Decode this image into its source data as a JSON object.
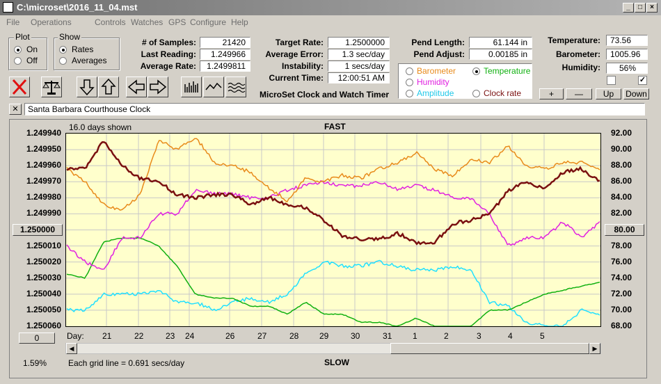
{
  "window": {
    "title": "C:\\microset\\2016_11_04.mst"
  },
  "menu": [
    "File",
    "Operations",
    "Controls",
    "Watches",
    "GPS",
    "Configure",
    "Help"
  ],
  "plot_group": {
    "title": "Plot",
    "on": "On",
    "off": "Off",
    "selected": "On"
  },
  "show_group": {
    "title": "Show",
    "rates": "Rates",
    "averages": "Averages",
    "selected": "Rates"
  },
  "stats": {
    "samples_label": "# of Samples:",
    "samples": "21420",
    "last_label": "Last Reading:",
    "last": "1.249966",
    "avg_label": "Average Rate:",
    "avg": "1.2499811",
    "target_label": "Target Rate:",
    "target": "1.2500000",
    "err_label": "Average Error:",
    "err": "1.3 sec/day",
    "instab_label": "Instability:",
    "instab": "1 secs/day",
    "time_label": "Current Time:",
    "time": "12:00:51 AM",
    "pendlen_label": "Pend Length:",
    "pendlen": "61.144 in",
    "pendadj_label": "Pend Adjust:",
    "pendadj": "0.00185 in",
    "temp_label": "Temperature:",
    "temp": "73.56",
    "baro_label": "Barometer:",
    "baro": "1005.96",
    "hum_label": "Humidity:",
    "hum": "56%"
  },
  "app_name": "MicroSet Clock and Watch Timer",
  "series_select": {
    "barometer": "Barometer",
    "humidity": "Humidity",
    "amplitude": "Amplitude",
    "temperature": "Temperature",
    "clockrate": "Clock rate",
    "selected": "Temperature"
  },
  "adjust_buttons": {
    "plus": "+",
    "minus": "—",
    "up": "Up",
    "down": "Down"
  },
  "clock_name": "Santa Barbara Courthouse Clock",
  "close_x": "✕",
  "chart_header": {
    "days_shown": "16.0 days shown",
    "fast": "FAST",
    "slow": "SLOW"
  },
  "left_center_button": "1.250000",
  "right_center_button": "80.00",
  "zero_button": "0",
  "percent": "1.59%",
  "grid_note": "Each grid line = 0.691 secs/day",
  "day_label": "Day:",
  "colors": {
    "barometer": "#e88a1a",
    "humidity": "#e020e0",
    "amplitude": "#20e0ff",
    "temperature": "#10b010",
    "clockrate": "#7a1010"
  },
  "chart_data": {
    "type": "line",
    "x_ticks": [
      "21",
      "22",
      "23",
      "24",
      "26",
      "27",
      "28",
      "29",
      "30",
      "31",
      "1",
      "2",
      "3",
      "4",
      "5"
    ],
    "y_left_ticks": [
      "1.249940",
      "1.249950",
      "1.249960",
      "1.249970",
      "1.249980",
      "1.249990",
      "1.250000",
      "1.250010",
      "1.250020",
      "1.250030",
      "1.250040",
      "1.250050",
      "1.250060"
    ],
    "y_right_ticks": [
      "92.00",
      "90.00",
      "88.00",
      "86.00",
      "84.00",
      "82.00",
      "80.00",
      "78.00",
      "76.00",
      "74.00",
      "72.00",
      "70.00",
      "68.00"
    ],
    "ylim_left": [
      1.25006,
      1.24994
    ],
    "ylim_right": [
      68,
      92
    ],
    "grid": true,
    "series": [
      {
        "name": "Clock rate",
        "axis": "left",
        "color": "#7a1010",
        "values": [
          1.249962,
          1.249962,
          1.249944,
          1.24996,
          1.249968,
          1.24997,
          1.249978,
          1.24998,
          1.249978,
          1.249978,
          1.249984,
          1.24998,
          1.249984,
          1.249986,
          1.249994,
          1.250004,
          1.250006,
          1.250006,
          1.250002,
          1.250008,
          1.250008,
          1.249996,
          1.249994,
          1.24999,
          1.249976,
          1.24997,
          1.249974,
          1.249964,
          1.249962,
          1.24997
        ]
      },
      {
        "name": "Barometer",
        "axis": "left",
        "color": "#e88a1a",
        "values": [
          1.249962,
          1.24997,
          1.249984,
          1.249988,
          1.249978,
          1.249944,
          1.24995,
          1.249942,
          1.249958,
          1.24996,
          1.249964,
          1.249974,
          1.249982,
          1.249968,
          1.24997,
          1.249966,
          1.249968,
          1.249962,
          1.249958,
          1.249952,
          1.249962,
          1.249966,
          1.249956,
          1.249958,
          1.249948,
          1.24996,
          1.249962,
          1.249958,
          1.249958,
          1.249962
        ]
      },
      {
        "name": "Humidity",
        "axis": "right",
        "color": "#e020e0",
        "values": [
          78,
          76,
          75,
          79,
          79,
          82,
          82,
          85,
          84.5,
          84.5,
          84,
          84,
          85,
          85.5,
          86,
          85.5,
          85.5,
          86,
          85,
          85.5,
          85,
          84,
          84,
          82,
          78,
          79,
          79,
          81,
          79,
          81
        ]
      },
      {
        "name": "Temperature",
        "axis": "right",
        "color": "#10b010",
        "values": [
          74.5,
          74,
          78.5,
          79,
          79,
          78,
          75.5,
          72,
          71.5,
          71.5,
          70.5,
          70.5,
          69.5,
          71,
          69.5,
          69.5,
          68.5,
          68.5,
          68,
          69,
          68,
          67.5,
          68,
          70,
          70,
          71,
          72,
          72.5,
          73,
          73.5
        ]
      },
      {
        "name": "Amplitude",
        "axis": "right",
        "color": "#20e0ff",
        "values": [
          70,
          70,
          72,
          72,
          72,
          72.5,
          71,
          71,
          70,
          71,
          71.5,
          71,
          72,
          74.5,
          76,
          75.5,
          75.5,
          76,
          75.5,
          75,
          75,
          75.5,
          75,
          71,
          70.5,
          68.5,
          68,
          68,
          70,
          69.5
        ]
      }
    ]
  }
}
